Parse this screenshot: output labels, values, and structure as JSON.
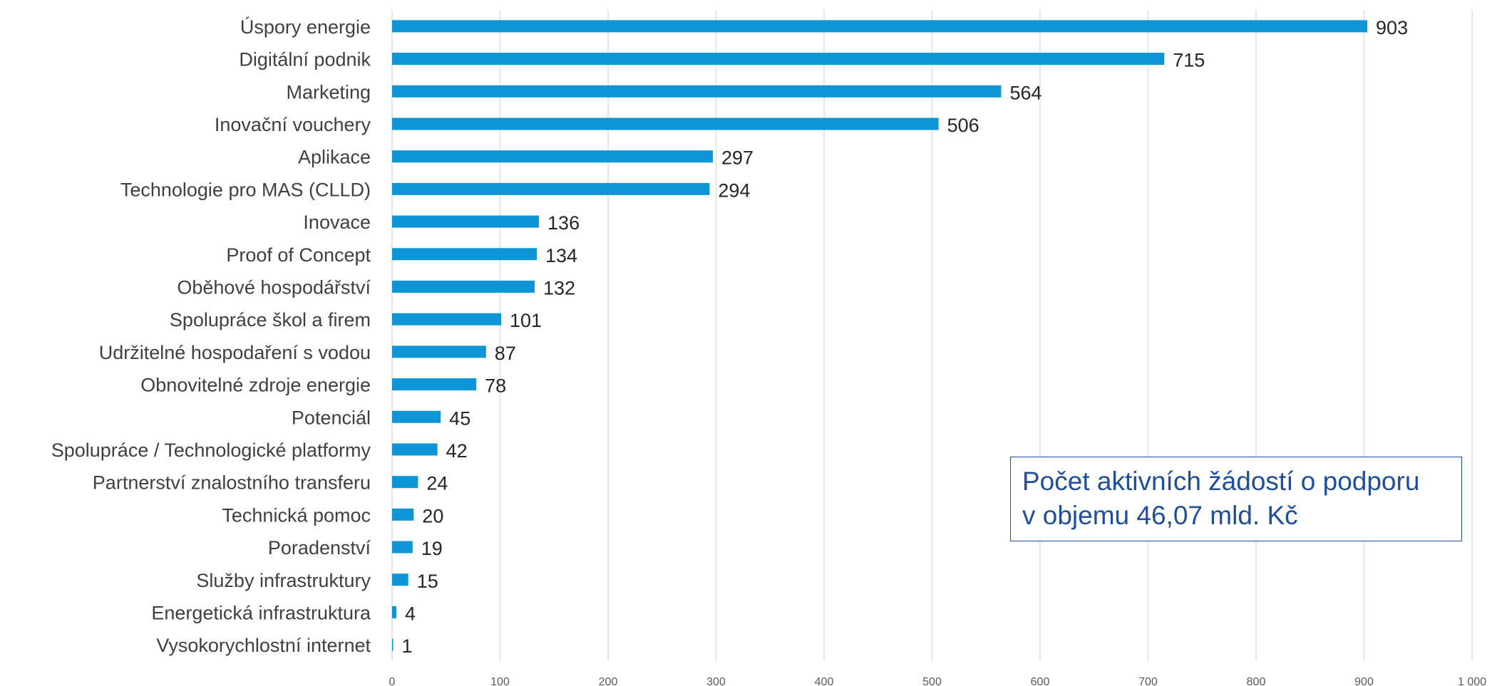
{
  "chart_data": {
    "type": "bar",
    "orientation": "horizontal",
    "categories": [
      "Úspory energie",
      "Digitální podnik",
      "Marketing",
      "Inovační vouchery",
      "Aplikace",
      "Technologie pro MAS (CLLD)",
      "Inovace",
      "Proof of Concept",
      "Oběhové hospodářství",
      "Spolupráce škol a firem",
      "Udržitelné hospodaření s vodou",
      "Obnovitelné zdroje energie",
      "Potenciál",
      "Spolupráce / Technologické platformy",
      "Partnerství znalostního transferu",
      "Technická pomoc",
      "Poradenství",
      "Služby infrastruktury",
      "Energetická infrastruktura",
      "Vysokorychlostní internet"
    ],
    "values": [
      903,
      715,
      564,
      506,
      297,
      294,
      136,
      134,
      132,
      101,
      87,
      78,
      45,
      42,
      24,
      20,
      19,
      15,
      4,
      1
    ],
    "value_labels": [
      "903",
      "715",
      "564",
      "506",
      "297",
      "294",
      "136",
      "134",
      "132",
      "101",
      "87",
      "78",
      "45",
      "42",
      "24",
      "20",
      "19",
      "15",
      "4",
      "1"
    ],
    "xlim": [
      0,
      1000
    ],
    "x_ticks": [
      0,
      100,
      200,
      300,
      400,
      500,
      600,
      700,
      800,
      900,
      1000
    ],
    "x_tick_labels": [
      "0",
      "100",
      "200",
      "300",
      "400",
      "500",
      "600",
      "700",
      "800",
      "900",
      "1 000"
    ],
    "grid": "vertical",
    "bar_color": "#0e95d5",
    "title": "",
    "xlabel": "",
    "ylabel": ""
  },
  "annotation": {
    "line1": "Počet aktivních žádostí o podporu",
    "line2": "v objemu 46,07 mld. Kč",
    "color": "#1f4e9a"
  }
}
